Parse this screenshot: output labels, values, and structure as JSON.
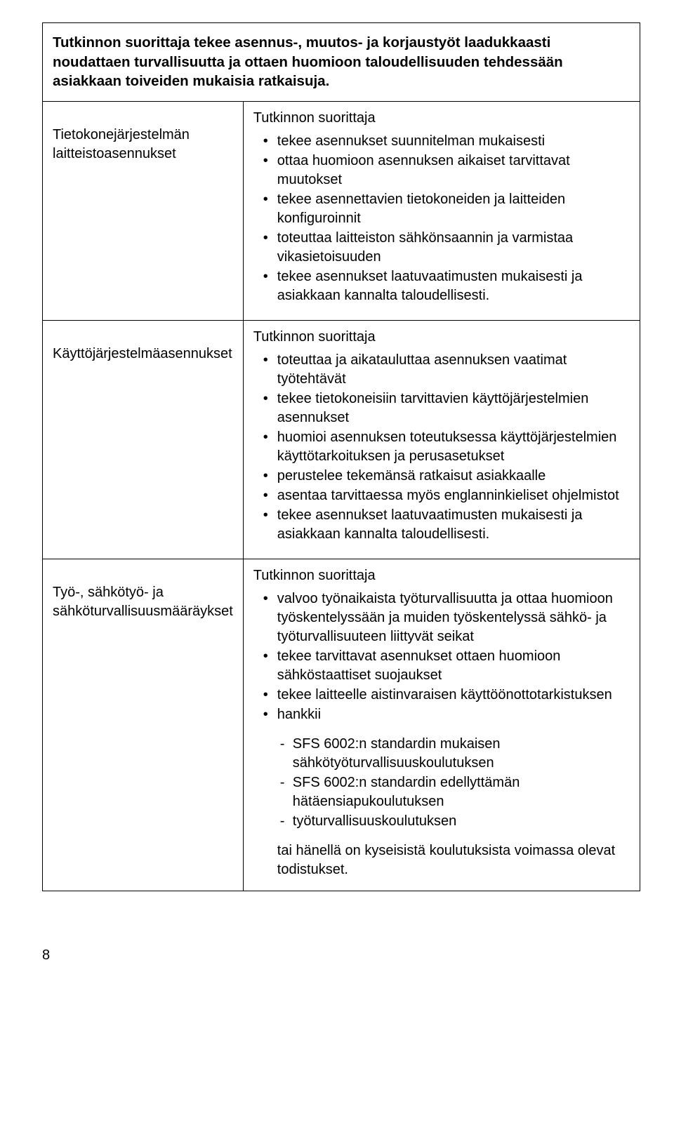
{
  "header": {
    "text": "Tutkinnon suorittaja tekee asennus-, muutos- ja korjaustyöt laadukkaasti noudattaen turvallisuutta ja ottaen huomioon taloudellisuuden tehdessään asiakkaan toiveiden mukaisia ratkaisuja."
  },
  "rows": [
    {
      "left": "Tietokonejärjestelmän laitteistoasennukset",
      "intro": "Tutkinnon suorittaja",
      "bullets": [
        "tekee asennukset suunnitelman mukaisesti",
        "ottaa huomioon asennuksen aikaiset tarvittavat muutokset",
        "tekee asennettavien tietokoneiden ja laitteiden konfiguroinnit",
        "toteuttaa laitteiston sähkönsaannin ja varmistaa vikasietoisuuden",
        "tekee asennukset laatuvaatimusten mukaisesti ja asiakkaan kannalta taloudellisesti."
      ]
    },
    {
      "left": "Käyttöjärjestelmäasennukset",
      "intro": "Tutkinnon suorittaja",
      "bullets": [
        "toteuttaa ja aikatauluttaa asennuksen vaatimat työtehtävät",
        "tekee tietokoneisiin tarvittavien käyttöjärjestelmien asennukset",
        "huomioi asennuksen toteutuksessa käyttöjärjestelmien käyttötarkoituksen ja perusasetukset",
        "perustelee tekemänsä ratkaisut asiakkaalle",
        "asentaa tarvittaessa myös englanninkieliset ohjelmistot",
        "tekee asennukset laatuvaatimusten mukaisesti ja asiakkaan kannalta taloudellisesti."
      ]
    },
    {
      "left": "Työ-, sähkötyö- ja sähköturvallisuusmääräykset",
      "intro": "Tutkinnon suorittaja",
      "bullets": [
        "valvoo työnaikaista työturvallisuutta ja ottaa huomioon työskentelyssään ja muiden työskentelyssä sähkö- ja työturvallisuuteen liittyvät seikat",
        "tekee tarvittavat asennukset ottaen huomioon sähköstaattiset suojaukset",
        "tekee laitteelle aistinvaraisen käyttöönottotarkistuksen",
        "hankkii"
      ],
      "dashes": [
        "SFS 6002:n standardin mukaisen sähkötyöturvallisuuskoulutuksen",
        "SFS 6002:n standardin edellyttämän hätäensiapukoulutuksen",
        "työturvallisuuskoulutuksen"
      ],
      "trail": "tai hänellä on kyseisistä koulutuksista voimassa olevat todistukset."
    }
  ],
  "page_number": "8"
}
